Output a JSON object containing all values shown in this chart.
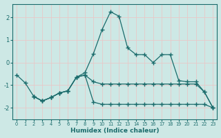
{
  "xlabel": "Humidex (Indice chaleur)",
  "background_color": "#cde8e5",
  "grid_color": "#e8c8c8",
  "line_color": "#1a6b6b",
  "xlim": [
    -0.5,
    23.5
  ],
  "ylim": [
    -2.5,
    2.6
  ],
  "yticks": [
    -2,
    -1,
    0,
    1,
    2
  ],
  "xticks": [
    0,
    1,
    2,
    3,
    4,
    5,
    6,
    7,
    8,
    9,
    10,
    11,
    12,
    13,
    14,
    15,
    16,
    17,
    18,
    19,
    20,
    21,
    22,
    23
  ],
  "line1_x": [
    0,
    1,
    2,
    3,
    4,
    5,
    6,
    7,
    8,
    9,
    10,
    11,
    12,
    13,
    14,
    15,
    16,
    17,
    18,
    19,
    20,
    21,
    22,
    23
  ],
  "line1_y": [
    -0.55,
    -0.9,
    -1.5,
    -1.7,
    -1.55,
    -1.35,
    -1.25,
    -0.65,
    -0.45,
    0.4,
    1.45,
    2.25,
    2.05,
    0.65,
    0.35,
    0.35,
    0.0,
    0.35,
    0.35,
    -0.8,
    -0.85,
    -0.85,
    -1.3,
    -2.0
  ],
  "line2_x": [
    2,
    3,
    4,
    5,
    6,
    7,
    8,
    9,
    10,
    11,
    12,
    13,
    14,
    15,
    16,
    17,
    18,
    19,
    20,
    21,
    22,
    23
  ],
  "line2_y": [
    -1.5,
    -1.7,
    -1.55,
    -1.35,
    -1.25,
    -0.65,
    -0.55,
    -0.85,
    -0.95,
    -0.95,
    -0.95,
    -0.95,
    -0.95,
    -0.95,
    -0.95,
    -0.95,
    -0.95,
    -0.95,
    -0.95,
    -0.95,
    -1.3,
    -2.0
  ],
  "line3_x": [
    2,
    3,
    4,
    5,
    6,
    7,
    8,
    9,
    10,
    11,
    12,
    13,
    14,
    15,
    16,
    17,
    18,
    19,
    20,
    21,
    22,
    23
  ],
  "line3_y": [
    -1.5,
    -1.7,
    -1.55,
    -1.35,
    -1.25,
    -0.65,
    -0.55,
    -1.75,
    -1.85,
    -1.85,
    -1.85,
    -1.85,
    -1.85,
    -1.85,
    -1.85,
    -1.85,
    -1.85,
    -1.85,
    -1.85,
    -1.85,
    -1.85,
    -2.0
  ]
}
